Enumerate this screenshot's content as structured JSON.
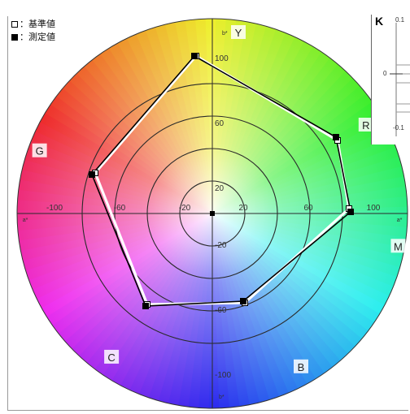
{
  "legend": {
    "reference_label": "：基準値",
    "measured_label": "：測定値"
  },
  "k_panel": {
    "label": "K",
    "ticks": [
      "0.1",
      "0",
      "-0.1"
    ]
  },
  "chart_data": {
    "type": "radar",
    "axes": [
      "Y",
      "R",
      "M",
      "B",
      "C",
      "G"
    ],
    "axis_ticks": {
      "top": [
        "100",
        "60",
        "20"
      ],
      "bottom": [
        "-20",
        "-60",
        "-100"
      ],
      "left": [
        "-100",
        "-60",
        "-20"
      ],
      "right": [
        "20",
        "60",
        "100"
      ]
    },
    "axis_units": {
      "top": "b*",
      "bottom": "b*",
      "left": "a*",
      "right": "a*"
    },
    "rlim": [
      0,
      100
    ],
    "rings": [
      20,
      40,
      60,
      80
    ],
    "grid": true,
    "legend_position": "top-left",
    "series": [
      {
        "name": "基準値",
        "marker": "open-square",
        "points": [
          {
            "a": -10,
            "b": 97
          },
          {
            "a": 77,
            "b": 45
          },
          {
            "a": 84,
            "b": 3
          },
          {
            "a": 20,
            "b": -55
          },
          {
            "a": -40,
            "b": -56
          },
          {
            "a": -72,
            "b": 25
          }
        ]
      },
      {
        "name": "測定値",
        "marker": "filled-square",
        "points": [
          {
            "a": -11,
            "b": 97
          },
          {
            "a": 76,
            "b": 47
          },
          {
            "a": 85,
            "b": 1
          },
          {
            "a": 19,
            "b": -54
          },
          {
            "a": -41,
            "b": -57
          },
          {
            "a": -74,
            "b": 24
          }
        ]
      }
    ]
  }
}
